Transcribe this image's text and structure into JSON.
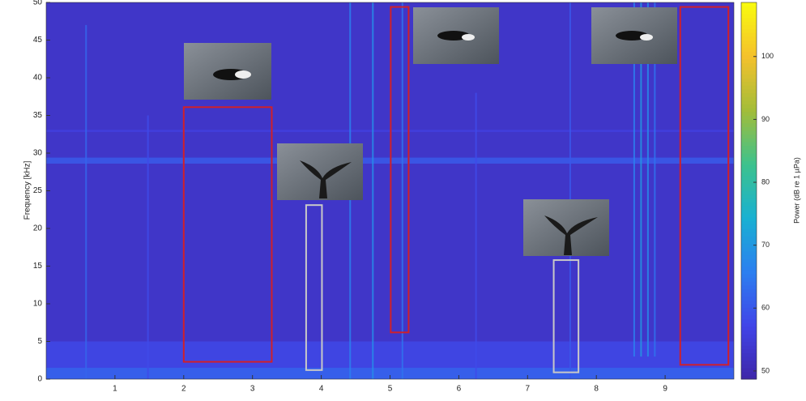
{
  "chart_data": {
    "type": "spectrogram",
    "ylabel": "Frequency [kHz]",
    "colorbar_label": "Power (dB re 1 µPa)",
    "xlim": [
      0,
      10
    ],
    "ylim": [
      0,
      50
    ],
    "xticks": [
      1,
      2,
      3,
      4,
      5,
      6,
      7,
      8,
      9
    ],
    "yticks": [
      0,
      5,
      10,
      15,
      20,
      25,
      30,
      35,
      40,
      45,
      50
    ],
    "clim": [
      48.7,
      108.6
    ],
    "cticks": [
      50,
      60,
      70,
      80,
      90,
      100
    ],
    "colormap": [
      "#3e26a8",
      "#4145e8",
      "#2c7ff0",
      "#19b1d2",
      "#3dc28d",
      "#a3bd39",
      "#f4c12c",
      "#f9fb0e"
    ],
    "background_power": 53,
    "bands": [
      {
        "f": [
          0,
          5
        ],
        "power": 58
      },
      {
        "f": [
          0,
          1.5
        ],
        "power": 62
      },
      {
        "f": [
          28.6,
          29.4
        ],
        "power": 61
      },
      {
        "f": [
          32.8,
          33.1
        ],
        "power": 56
      }
    ],
    "clicks": [
      {
        "t": 0.58,
        "f": [
          0,
          47
        ],
        "power": 62
      },
      {
        "t": 1.48,
        "f": [
          0,
          35
        ],
        "power": 58
      },
      {
        "t": 4.42,
        "f": [
          0,
          50
        ],
        "power": 66
      },
      {
        "t": 4.75,
        "f": [
          0,
          50
        ],
        "power": 68
      },
      {
        "t": 5.18,
        "f": [
          0,
          50
        ],
        "power": 64
      },
      {
        "t": 6.25,
        "f": [
          0,
          38
        ],
        "power": 58
      },
      {
        "t": 7.62,
        "f": [
          0,
          50
        ],
        "power": 60
      },
      {
        "t": 8.55,
        "f": [
          3,
          50
        ],
        "power": 66
      },
      {
        "t": 8.65,
        "f": [
          3,
          50
        ],
        "power": 70
      },
      {
        "t": 8.75,
        "f": [
          3,
          50
        ],
        "power": 68
      },
      {
        "t": 8.85,
        "f": [
          3,
          50
        ],
        "power": 64
      }
    ],
    "regions": [
      {
        "color": "#d0202a",
        "x": [
          2.0,
          3.28
        ],
        "y": [
          2.3,
          36.1
        ]
      },
      {
        "color": "#d0202a",
        "x": [
          5.01,
          5.27
        ],
        "y": [
          6.2,
          49.4
        ]
      },
      {
        "color": "#d0202a",
        "x": [
          9.22,
          9.92
        ],
        "y": [
          1.9,
          49.4
        ]
      },
      {
        "color": "#c8c8c8",
        "x": [
          3.78,
          4.01
        ],
        "y": [
          1.2,
          23.1
        ]
      },
      {
        "color": "#c8c8c8",
        "x": [
          7.38,
          7.74
        ],
        "y": [
          0.9,
          15.8
        ]
      }
    ]
  }
}
